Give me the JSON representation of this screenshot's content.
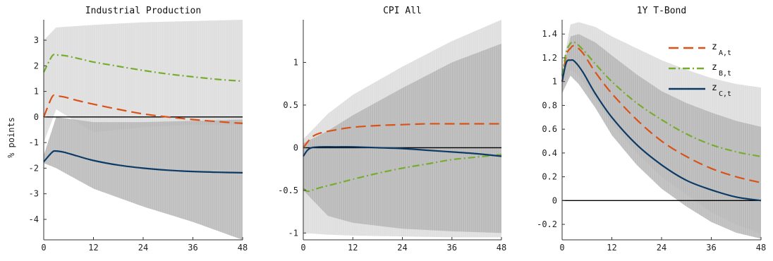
{
  "ylabel": "% points",
  "colors": {
    "A": "#d95319",
    "B": "#77ac30",
    "C": "#0d3b66",
    "band_light": "#dcdcdc",
    "band_dark": "#b4b4b4"
  },
  "legend": [
    {
      "key": "A",
      "label": "z",
      "sub": "A,t",
      "dash": "long-dash"
    },
    {
      "key": "B",
      "label": "z",
      "sub": "B,t",
      "dash": "dash-dot"
    },
    {
      "key": "C",
      "label": "z",
      "sub": "C,t",
      "dash": "solid"
    }
  ],
  "chart_data": [
    {
      "type": "line",
      "title": "Industrial Production",
      "xlim": [
        0,
        48
      ],
      "ylim": [
        -4.8,
        3.8
      ],
      "xticks": [
        0,
        12,
        24,
        36,
        48
      ],
      "yticks": [
        -4,
        -3,
        -2,
        -1,
        0,
        1,
        2,
        3
      ],
      "yticklabels": [
        "-4",
        "-3",
        "-2",
        "-1",
        "0",
        "1",
        "2",
        "3"
      ],
      "zero_line": 0,
      "bands": [
        {
          "name": "light",
          "color": "band_light",
          "x": [
            0,
            3,
            12,
            24,
            36,
            48
          ],
          "lower": [
            -1.0,
            0.3,
            -0.6,
            -0.4,
            -0.3,
            -0.3
          ],
          "upper": [
            3.0,
            3.5,
            3.6,
            3.7,
            3.75,
            3.8
          ]
        },
        {
          "name": "dark",
          "color": "band_dark",
          "x": [
            0,
            3,
            12,
            24,
            36,
            48
          ],
          "lower": [
            -1.8,
            -2.0,
            -2.8,
            -3.5,
            -4.1,
            -4.8
          ],
          "upper": [
            -1.5,
            0.0,
            -0.2,
            -0.2,
            -0.15,
            -0.1
          ]
        }
      ],
      "series": [
        {
          "key": "A",
          "x": [
            0,
            2,
            3,
            5,
            8,
            12,
            18,
            24,
            30,
            36,
            42,
            48
          ],
          "values": [
            0.0,
            0.78,
            0.82,
            0.78,
            0.65,
            0.5,
            0.3,
            0.12,
            0.0,
            -0.1,
            -0.18,
            -0.25
          ]
        },
        {
          "key": "B",
          "x": [
            0,
            2,
            3,
            5,
            8,
            12,
            18,
            24,
            30,
            36,
            42,
            48
          ],
          "values": [
            1.75,
            2.38,
            2.42,
            2.4,
            2.3,
            2.15,
            1.98,
            1.82,
            1.68,
            1.57,
            1.47,
            1.4
          ]
        },
        {
          "key": "C",
          "x": [
            0,
            2,
            3,
            5,
            8,
            12,
            18,
            24,
            30,
            36,
            42,
            48
          ],
          "values": [
            -1.75,
            -1.38,
            -1.33,
            -1.38,
            -1.52,
            -1.7,
            -1.88,
            -2.0,
            -2.08,
            -2.13,
            -2.16,
            -2.18
          ]
        }
      ]
    },
    {
      "type": "line",
      "title": "CPI All",
      "xlim": [
        0,
        48
      ],
      "ylim": [
        -1.08,
        1.5
      ],
      "xticks": [
        0,
        12,
        24,
        36,
        48
      ],
      "yticks": [
        -1,
        -0.5,
        0,
        0.5,
        1
      ],
      "yticklabels": [
        "-1",
        "-0.5",
        "0",
        "0.5",
        "1"
      ],
      "zero_line": 0,
      "bands": [
        {
          "name": "light",
          "color": "band_light",
          "x": [
            0,
            6,
            12,
            24,
            36,
            48
          ],
          "lower": [
            -1.0,
            -1.02,
            -1.03,
            -1.04,
            -1.05,
            -1.05
          ],
          "upper": [
            0.1,
            0.4,
            0.62,
            0.95,
            1.25,
            1.5
          ]
        },
        {
          "name": "dark",
          "color": "band_dark",
          "x": [
            0,
            6,
            12,
            24,
            36,
            48
          ],
          "lower": [
            -0.5,
            -0.8,
            -0.88,
            -0.95,
            -0.98,
            -1.0
          ],
          "upper": [
            0.05,
            0.2,
            0.38,
            0.7,
            1.0,
            1.22
          ]
        }
      ],
      "series": [
        {
          "key": "A",
          "x": [
            0,
            2,
            4,
            8,
            12,
            18,
            24,
            30,
            36,
            42,
            48
          ],
          "values": [
            0.0,
            0.12,
            0.17,
            0.21,
            0.24,
            0.26,
            0.27,
            0.28,
            0.28,
            0.28,
            0.28
          ]
        },
        {
          "key": "B",
          "x": [
            0,
            1,
            2,
            4,
            8,
            12,
            18,
            24,
            30,
            36,
            42,
            48
          ],
          "values": [
            -0.48,
            -0.51,
            -0.5,
            -0.47,
            -0.42,
            -0.37,
            -0.3,
            -0.24,
            -0.19,
            -0.14,
            -0.11,
            -0.08
          ]
        },
        {
          "key": "C",
          "x": [
            0,
            1,
            2,
            4,
            8,
            12,
            18,
            24,
            30,
            36,
            42,
            48
          ],
          "values": [
            -0.1,
            -0.03,
            0.0,
            0.01,
            0.01,
            0.01,
            0.0,
            -0.01,
            -0.03,
            -0.05,
            -0.07,
            -0.1
          ]
        }
      ]
    },
    {
      "type": "line",
      "title": "1Y T-Bond",
      "xlim": [
        0,
        48
      ],
      "ylim": [
        -0.33,
        1.52
      ],
      "xticks": [
        0,
        12,
        24,
        36,
        48
      ],
      "yticks": [
        -0.2,
        0,
        0.2,
        0.4,
        0.6,
        0.8,
        1,
        1.2,
        1.4
      ],
      "yticklabels": [
        "-0.2",
        "0",
        "0.2",
        "0.4",
        "0.6",
        "0.8",
        "1",
        "1.2",
        "1.4"
      ],
      "zero_line": 0,
      "bands": [
        {
          "name": "light",
          "color": "band_light",
          "x": [
            0,
            2,
            4,
            8,
            12,
            18,
            24,
            30,
            36,
            42,
            48
          ],
          "lower": [
            0.95,
            1.1,
            1.05,
            0.85,
            0.65,
            0.4,
            0.2,
            0.05,
            -0.1,
            -0.2,
            -0.28
          ],
          "upper": [
            1.1,
            1.48,
            1.5,
            1.46,
            1.38,
            1.28,
            1.18,
            1.1,
            1.03,
            0.98,
            0.95
          ]
        },
        {
          "name": "dark",
          "color": "band_dark",
          "x": [
            0,
            2,
            4,
            8,
            12,
            18,
            24,
            30,
            36,
            42,
            48
          ],
          "lower": [
            0.9,
            1.05,
            0.98,
            0.78,
            0.55,
            0.3,
            0.1,
            -0.05,
            -0.18,
            -0.27,
            -0.32
          ],
          "upper": [
            1.05,
            1.38,
            1.4,
            1.33,
            1.22,
            1.06,
            0.92,
            0.82,
            0.74,
            0.67,
            0.62
          ]
        }
      ],
      "series": [
        {
          "key": "A",
          "x": [
            0,
            1,
            2,
            3,
            5,
            8,
            12,
            18,
            24,
            30,
            36,
            42,
            48
          ],
          "values": [
            1.0,
            1.22,
            1.28,
            1.3,
            1.24,
            1.08,
            0.9,
            0.68,
            0.5,
            0.37,
            0.27,
            0.2,
            0.15
          ]
        },
        {
          "key": "B",
          "x": [
            0,
            1,
            2,
            3,
            5,
            8,
            12,
            18,
            24,
            30,
            36,
            42,
            48
          ],
          "values": [
            1.05,
            1.25,
            1.32,
            1.33,
            1.27,
            1.15,
            1.0,
            0.82,
            0.68,
            0.56,
            0.47,
            0.41,
            0.37
          ]
        },
        {
          "key": "C",
          "x": [
            0,
            1,
            2,
            3,
            5,
            8,
            12,
            18,
            24,
            30,
            36,
            42,
            48
          ],
          "values": [
            1.0,
            1.16,
            1.18,
            1.17,
            1.08,
            0.9,
            0.7,
            0.47,
            0.3,
            0.17,
            0.09,
            0.03,
            0.0
          ]
        }
      ]
    }
  ]
}
